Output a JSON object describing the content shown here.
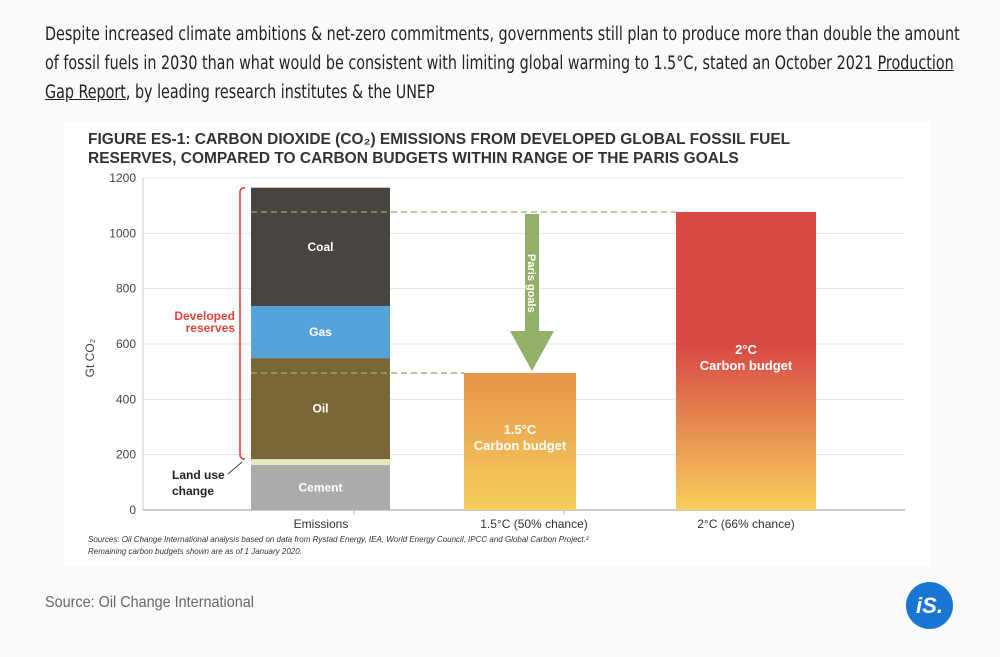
{
  "intro": {
    "before_link": "Despite increased climate ambitions & net-zero commitments, governments still plan to produce more than double the amount of fossil fuels in 2030 than what would be consistent with limiting global warming to 1.5°C, stated an October 2021 ",
    "link": "Production Gap Report",
    "after_link": ", by leading research institutes & the UNEP"
  },
  "source": "Source: Oil Change International",
  "logo": "iS.",
  "chart_data": {
    "type": "bar",
    "title_line1": "FIGURE ES-1: CARBON DIOXIDE (CO₂) EMISSIONS FROM DEVELOPED GLOBAL FOSSIL FUEL",
    "title_line2": "RESERVES, COMPARED TO CARBON BUDGETS WITHIN RANGE OF THE PARIS GOALS",
    "ylabel": "Gt CO₂",
    "ylim": [
      0,
      1200
    ],
    "yticks": [
      0,
      200,
      400,
      600,
      800,
      1000,
      1200
    ],
    "grid": true,
    "categories": [
      "Emissions",
      "1.5°C (50% chance)",
      "2°C (66% chance)"
    ],
    "stack": [
      {
        "name": "Cement",
        "value": 163,
        "color": "#ababab",
        "label_color": "#ffffff"
      },
      {
        "name": "Land use change",
        "value": 21,
        "color": "#e8e8c0"
      },
      {
        "name": "Oil",
        "value": 365,
        "color": "#786637",
        "label_color": "#ffffff"
      },
      {
        "name": "Gas",
        "value": 188,
        "color": "#55a3d8",
        "label_color": "#ffffff"
      },
      {
        "name": "Coal",
        "value": 428,
        "color": "#4a4440",
        "label_color": "#ffffff"
      }
    ],
    "budgets": [
      {
        "label_line1": "1.5°C",
        "label_line2": "Carbon budget",
        "value": 495,
        "color_top": "#e8944a",
        "color_bottom": "#f5cf5c"
      },
      {
        "label_line1": "2°C",
        "label_line2": "Carbon budget",
        "value": 1077,
        "color_top": "#d94a45",
        "color_bottom": "#f5cf5c"
      }
    ],
    "annotations": {
      "developed_reserves": [
        "Developed",
        "reserves"
      ],
      "land_use": [
        "Land use",
        "change"
      ],
      "arrow": "Paris goals",
      "bracket_color": "#e0443c",
      "arrow_color": "#92b068"
    },
    "notes_line1": "Sources: Oil Change International analysis based on data from Rystad Energy, IEA, World Energy Council, IPCC and Global Carbon Project.²",
    "notes_line2": "Remaining carbon budgets shown are as of 1 January 2020."
  }
}
